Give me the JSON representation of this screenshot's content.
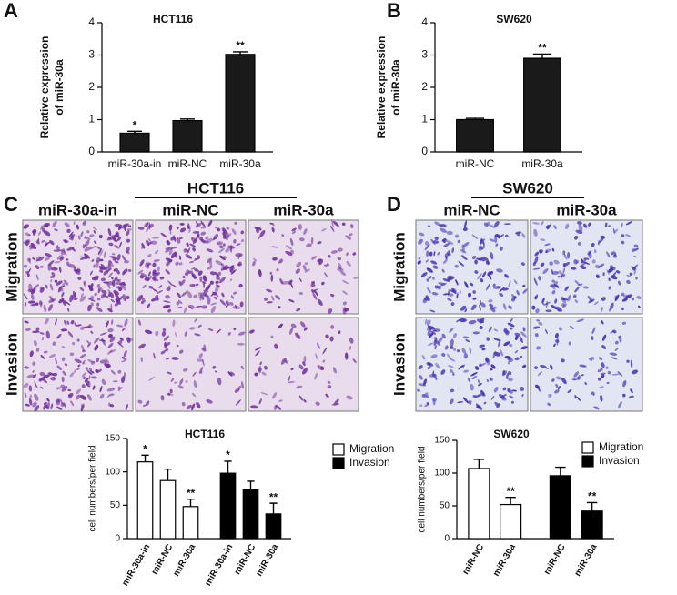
{
  "figure_labels": [
    "A",
    "B",
    "C",
    "D"
  ],
  "image_panels": [
    {
      "title": "HCT116",
      "columns": [
        "miR-30a-in",
        "miR-NC",
        "miR-30a"
      ],
      "rows": [
        "Migration",
        "Invasion"
      ]
    },
    {
      "title": "SW620",
      "columns": [
        "miR-NC",
        "miR-30a"
      ],
      "rows": [
        "Migration",
        "Invasion"
      ]
    }
  ],
  "chart_data": [
    {
      "type": "bar",
      "title": "HCT116",
      "ylabel": [
        "Relative expression",
        "of miR-30a"
      ],
      "categories": [
        "miR-30a-in",
        "miR-NC",
        "miR-30a"
      ],
      "values": [
        0.58,
        0.97,
        3.02
      ],
      "errors": [
        0.06,
        0.05,
        0.08
      ],
      "annotations": [
        "*",
        null,
        "**"
      ],
      "color": "#1a1a1a",
      "ylim": [
        0,
        4
      ],
      "yticks": [
        0,
        1,
        2,
        3,
        4
      ]
    },
    {
      "type": "bar",
      "title": "SW620",
      "ylabel": [
        "Relative expression",
        "of miR-30a"
      ],
      "categories": [
        "miR-NC",
        "miR-30a"
      ],
      "values": [
        1.0,
        2.9
      ],
      "errors": [
        0.04,
        0.13
      ],
      "annotations": [
        null,
        "**"
      ],
      "color": "#1a1a1a",
      "ylim": [
        0,
        4
      ],
      "yticks": [
        0,
        1,
        2,
        3,
        4
      ]
    },
    {
      "type": "bar",
      "title": "HCT116",
      "ylabel": [
        "cell numbers/per field"
      ],
      "categories": [
        "miR-30a-in",
        "miR-NC",
        "miR-30a",
        "miR-30a-in",
        "miR-NC",
        "miR-30a"
      ],
      "series": [
        {
          "name": "Migration",
          "color": "#ffffff",
          "values": [
            115,
            87,
            48,
            null,
            null,
            null
          ],
          "errors": [
            10,
            17,
            11,
            null,
            null,
            null
          ],
          "annotations": [
            "*",
            null,
            "**",
            null,
            null,
            null
          ]
        },
        {
          "name": "Invasion",
          "color": "#000000",
          "values": [
            null,
            null,
            null,
            98,
            73,
            37
          ],
          "errors": [
            null,
            null,
            null,
            18,
            13,
            16
          ],
          "annotations": [
            null,
            null,
            null,
            "*",
            null,
            "**"
          ]
        }
      ],
      "legend": "right",
      "ylim": [
        0,
        150
      ],
      "yticks": [
        0,
        50,
        100,
        150
      ]
    },
    {
      "type": "bar",
      "title": "SW620",
      "ylabel": [
        "cell numbers/per field"
      ],
      "categories": [
        "miR-NC",
        "miR-30a",
        "miR-NC",
        "miR-30a"
      ],
      "series": [
        {
          "name": "Migration",
          "color": "#ffffff",
          "values": [
            107,
            52,
            null,
            null
          ],
          "errors": [
            14,
            11,
            null,
            null
          ],
          "annotations": [
            null,
            "**",
            null,
            null
          ]
        },
        {
          "name": "Invasion",
          "color": "#000000",
          "values": [
            null,
            null,
            96,
            42
          ],
          "errors": [
            null,
            null,
            13,
            13
          ],
          "annotations": [
            null,
            null,
            null,
            "**"
          ]
        }
      ],
      "legend": "right",
      "ylim": [
        0,
        150
      ],
      "yticks": [
        0,
        50,
        100,
        150
      ]
    }
  ]
}
